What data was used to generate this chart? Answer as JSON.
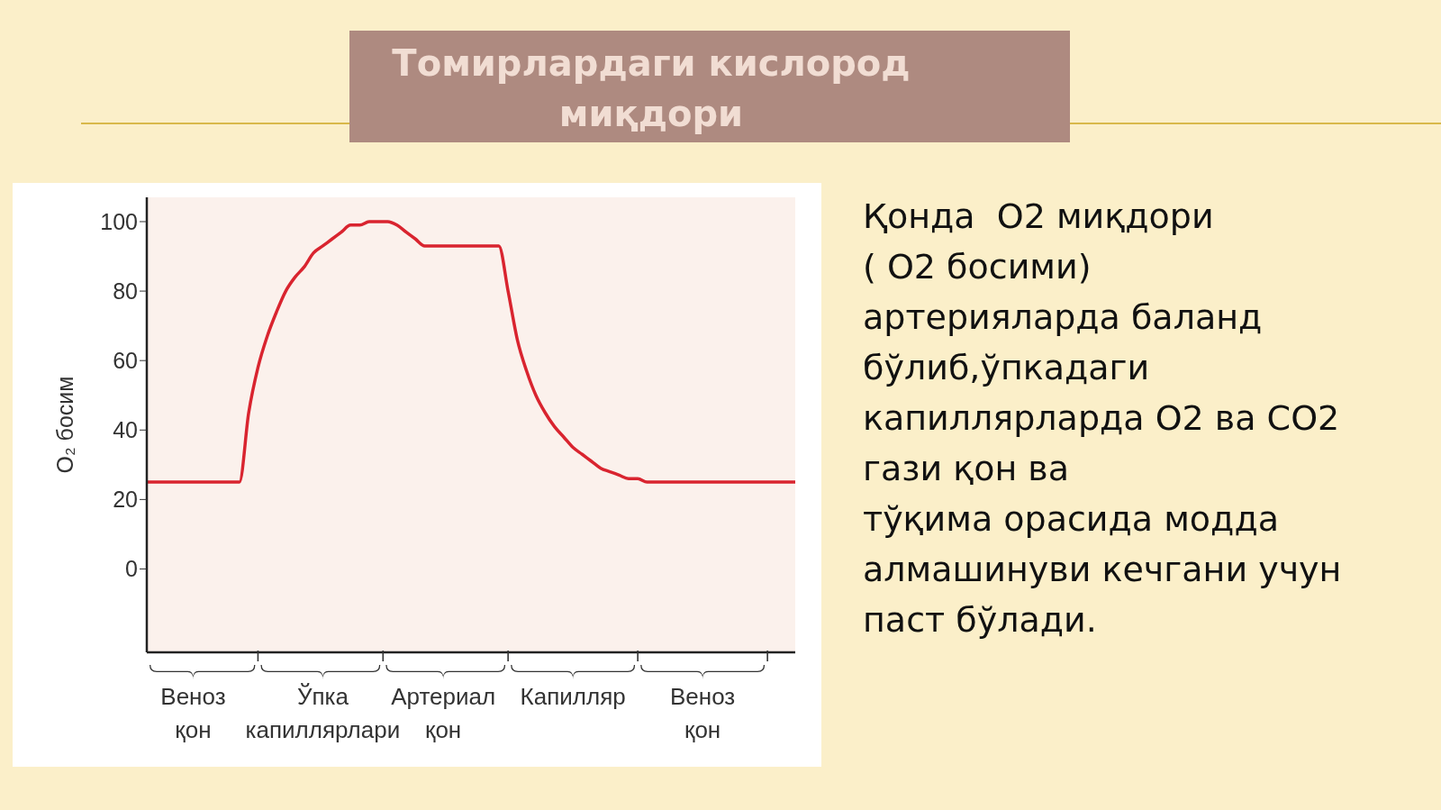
{
  "chart_data": {
    "type": "line",
    "title": "Томирлардаги кислород миқдори",
    "ylabel": "O₂ босим",
    "annotations": [
      "Қонда  O2 миқдори\n( O2 босими)\nартерияларда баланд\nбўлиб,ўпкадаги\nкапиллярларда O2 ва CO2\nгази қон ва\nтўқима орасида модда\nалмашинуви кечгани учун\nпаст бўлади."
    ],
    "categories": [
      null,
      null,
      null,
      null,
      null,
      "Веноз қон",
      null,
      null,
      null,
      null,
      null,
      null,
      null,
      null,
      null,
      null,
      null,
      null,
      null,
      "Ўпка капиллярлари",
      null,
      null,
      null,
      null,
      null,
      null,
      null,
      null,
      null,
      null,
      null,
      null,
      "Артериал қон",
      null,
      null,
      null,
      null,
      null,
      null,
      null,
      null,
      null,
      null,
      null,
      null,
      null,
      "Капилляр",
      null,
      null,
      null,
      null,
      null,
      null,
      null,
      null,
      null,
      null,
      null,
      null,
      null,
      "Веноз қон",
      null,
      null,
      null,
      null,
      null,
      null,
      null,
      null,
      null,
      null
    ],
    "series": [
      {
        "color": "#d9242f",
        "values": [
          25,
          25,
          25,
          25,
          25,
          25,
          25,
          25,
          25,
          25,
          25,
          45,
          58,
          67,
          74,
          80,
          84,
          87,
          91,
          93,
          95,
          97,
          99,
          99,
          100,
          100,
          100,
          99,
          97,
          95,
          93,
          93,
          93,
          93,
          93,
          93,
          93,
          93,
          93,
          80,
          66,
          57,
          50,
          45,
          41,
          38,
          35,
          33,
          31,
          29,
          28,
          27,
          26,
          26,
          25,
          25,
          25,
          25,
          25,
          25,
          25,
          25,
          25,
          25,
          25,
          25,
          25,
          25,
          25,
          25,
          25
        ]
      }
    ],
    "ylim": [
      -24,
      107
    ],
    "yticks": [
      0,
      20,
      40,
      60,
      80,
      100
    ],
    "marker": "none",
    "line_style": "solid"
  }
}
